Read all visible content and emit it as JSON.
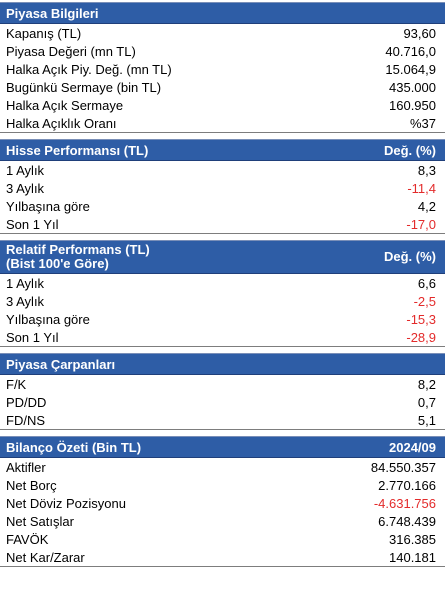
{
  "piyasa": {
    "title": "Piyasa Bilgileri",
    "rows": [
      {
        "label": "Kapanış (TL)",
        "value": "93,60"
      },
      {
        "label": "Piyasa Değeri (mn TL)",
        "value": "40.716,0"
      },
      {
        "label": "Halka Açık Piy. Değ. (mn TL)",
        "value": "15.064,9"
      },
      {
        "label": "Bugünkü Sermaye (bin TL)",
        "value": "435.000"
      },
      {
        "label": "Halka Açık Sermaye",
        "value": "160.950"
      },
      {
        "label": "Halka Açıklık Oranı",
        "value": "%37"
      }
    ]
  },
  "hisse": {
    "title": "Hisse Performansı (TL)",
    "col": "Değ. (%)",
    "rows": [
      {
        "label": "1 Aylık",
        "value": "8,3"
      },
      {
        "label": "3 Aylık",
        "value": "-11,4"
      },
      {
        "label": "Yılbaşına göre",
        "value": "4,2"
      },
      {
        "label": "Son 1 Yıl",
        "value": "-17,0"
      }
    ]
  },
  "relatif": {
    "title_line1": "Relatif Performans (TL)",
    "title_line2": "(Bist 100'e Göre)",
    "col": "Değ. (%)",
    "rows": [
      {
        "label": "1 Aylık",
        "value": "6,6"
      },
      {
        "label": "3 Aylık",
        "value": "-2,5"
      },
      {
        "label": "Yılbaşına göre",
        "value": "-15,3"
      },
      {
        "label": "Son 1 Yıl",
        "value": "-28,9"
      }
    ]
  },
  "carpan": {
    "title": "Piyasa Çarpanları",
    "rows": [
      {
        "label": "F/K",
        "value": "8,2"
      },
      {
        "label": "PD/DD",
        "value": "0,7"
      },
      {
        "label": "FD/NS",
        "value": "5,1"
      }
    ]
  },
  "bilanco": {
    "title": "Bilanço Özeti (Bin TL)",
    "col": "2024/09",
    "rows": [
      {
        "label": "Aktifler",
        "value": "84.550.357"
      },
      {
        "label": "Net Borç",
        "value": "2.770.166"
      },
      {
        "label": "Net Döviz Pozisyonu",
        "value": "-4.631.756"
      },
      {
        "label": "Net Satışlar",
        "value": "6.748.439"
      },
      {
        "label": "FAVÖK",
        "value": "316.385"
      },
      {
        "label": "Net Kar/Zarar",
        "value": "140.181"
      }
    ]
  },
  "colors": {
    "header_bg": "#2e5da6",
    "negative": "#e32b2b"
  }
}
